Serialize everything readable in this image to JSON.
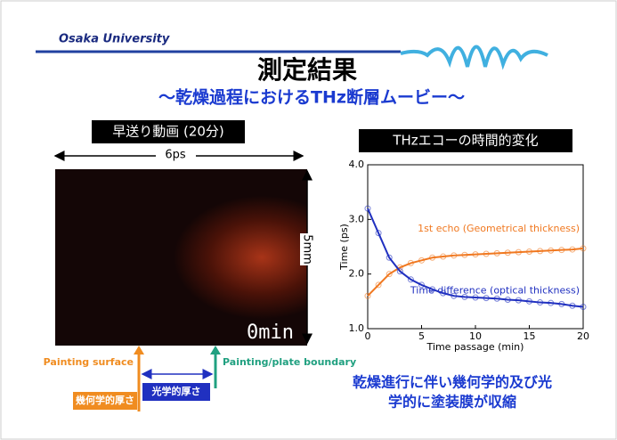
{
  "header": {
    "org": "Osaka University"
  },
  "title": "測定結果",
  "subtitle": "〜乾燥過程におけるTHz断層ムービー〜",
  "movie": {
    "label": "早送り動画 (20分)",
    "width_label": "6ps",
    "height_label": "5mm",
    "time_label": "0min",
    "painting_surface": "Painting surface",
    "boundary": "Painting/plate boundary",
    "optical_thickness": "光学的厚さ",
    "geometrical_thickness": "幾何学的厚さ"
  },
  "chart_label": "THzエコーの時間的変化",
  "conclusion": [
    "乾燥進行に伴い幾何学的及び光",
    "学的に塗装膜が収縮"
  ],
  "chart_data": {
    "type": "line",
    "xlabel": "Time passage (min)",
    "ylabel": "Time (ps)",
    "x": [
      0,
      1,
      2,
      3,
      4,
      5,
      6,
      7,
      8,
      9,
      10,
      11,
      12,
      13,
      14,
      15,
      16,
      17,
      18,
      19,
      20
    ],
    "series": [
      {
        "name": "1st echo (Geometrical thickness)",
        "color": "#f07820",
        "values": [
          1.6,
          1.8,
          2.0,
          2.12,
          2.2,
          2.25,
          2.3,
          2.32,
          2.34,
          2.35,
          2.36,
          2.37,
          2.38,
          2.39,
          2.4,
          2.41,
          2.42,
          2.43,
          2.44,
          2.45,
          2.47
        ]
      },
      {
        "name": "Time difference (optical thickness)",
        "color": "#2030c0",
        "values": [
          3.2,
          2.75,
          2.3,
          2.05,
          1.9,
          1.8,
          1.72,
          1.65,
          1.6,
          1.58,
          1.57,
          1.56,
          1.55,
          1.53,
          1.52,
          1.5,
          1.48,
          1.47,
          1.45,
          1.42,
          1.4
        ]
      }
    ],
    "xlim": [
      0,
      20
    ],
    "xticks": [
      0,
      5,
      10,
      15,
      20
    ],
    "ylim": [
      1.0,
      4.0
    ],
    "yticks": [
      {
        "value": 1.0,
        "label": "1.0"
      },
      {
        "value": 2.0,
        "label": "2.0"
      },
      {
        "value": 3.0,
        "label": "3.0"
      },
      {
        "value": 4.0,
        "label": "4.0"
      }
    ]
  }
}
